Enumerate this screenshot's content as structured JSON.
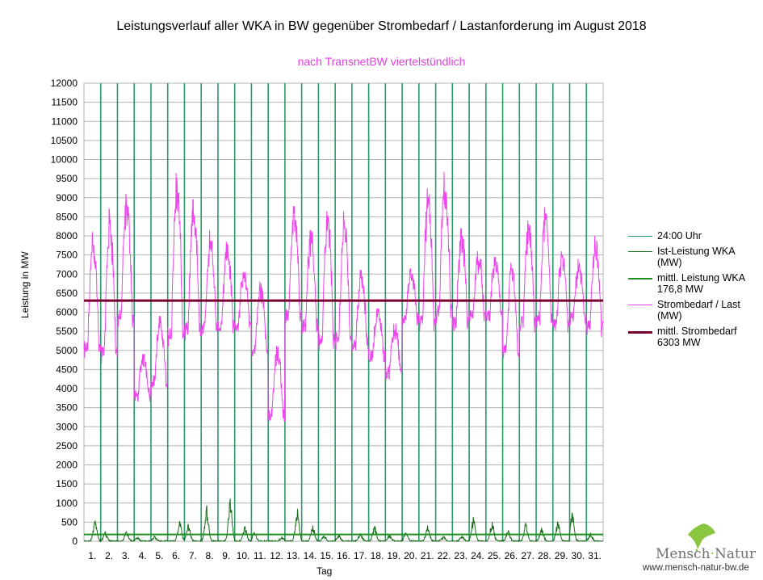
{
  "chart_data": {
    "type": "line",
    "title": "Leistungsverlauf aller WKA in BW gegenüber  Strombedarf / Lastanforderung im August 2018",
    "subtitle": "nach TransnetBW viertelstündlich",
    "xlabel": "Tag",
    "ylabel": "Leistung in MW",
    "ylim": [
      0,
      12000
    ],
    "ytick_step": 500,
    "categories": [
      "1.",
      "2.",
      "3.",
      "4.",
      "5.",
      "6.",
      "7.",
      "8.",
      "9.",
      "10.",
      "11.",
      "12.",
      "13.",
      "14.",
      "15.",
      "16.",
      "17.",
      "18.",
      "19.",
      "20.",
      "21.",
      "22.",
      "23.",
      "24.",
      "25.",
      "26.",
      "27.",
      "28.",
      "29.",
      "30.",
      "31."
    ],
    "series": [
      {
        "name": "Strombedarf / Last (MW)",
        "color": "#ee44ee",
        "daily_min": [
          4800,
          4650,
          5600,
          3700,
          4050,
          5100,
          5250,
          5400,
          5500,
          5550,
          4850,
          3150,
          5700,
          5450,
          5000,
          5000,
          5000,
          4750,
          4300,
          5700,
          5500,
          5700,
          5500,
          5750,
          5800,
          4800,
          5500,
          5600,
          5500,
          5700,
          5400
        ],
        "daily_max": [
          8100,
          8700,
          9100,
          4900,
          5900,
          9650,
          8950,
          8150,
          7850,
          7050,
          6800,
          5100,
          8780,
          8150,
          8650,
          8650,
          7100,
          6100,
          5700,
          7150,
          9250,
          9680,
          8200,
          7600,
          7450,
          7300,
          8400,
          8750,
          7600,
          7400,
          8000
        ]
      },
      {
        "name": "Ist-Leistung WKA (MW)",
        "color": "#1a6b1a",
        "daily_max": [
          560,
          240,
          250,
          100,
          120,
          540,
          440,
          920,
          1130,
          380,
          240,
          110,
          870,
          420,
          150,
          160,
          200,
          390,
          160,
          240,
          400,
          130,
          140,
          620,
          500,
          280,
          470,
          350,
          510,
          740,
          190
        ]
      },
      {
        "name": "mittl. Leistung WKA 176,8 MW",
        "color": "#1f8f1f",
        "value": 176.8
      },
      {
        "name": "mittl. Strombedarf 6303 MW",
        "color": "#7a0030",
        "value": 6303
      },
      {
        "name": "24:00 Uhr",
        "color": "#2a9a6a"
      }
    ],
    "legend": [
      {
        "label": "24:00 Uhr",
        "color": "#2a9a6a",
        "width": 1
      },
      {
        "label": "Ist-Leistung WKA\n(MW)",
        "color": "#1a6b1a",
        "width": 1
      },
      {
        "label": "mittl. Leistung WKA\n176,8 MW",
        "color": "#1f8f1f",
        "width": 2
      },
      {
        "label": "Strombedarf / Last\n(MW)",
        "color": "#ee44ee",
        "width": 1
      },
      {
        "label": "mittl. Strombedarf\n6303 MW",
        "color": "#7a0030",
        "width": 3
      }
    ]
  },
  "branding": {
    "logo_text_left": "Mensch",
    "logo_text_right": "Natur",
    "url": "www.mensch-natur-bw.de"
  }
}
